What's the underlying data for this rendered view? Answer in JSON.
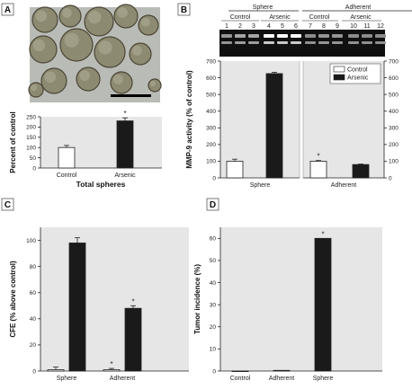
{
  "panels": {
    "A": "A",
    "B": "B",
    "C": "C",
    "D": "D"
  },
  "gel": {
    "group_labels": [
      "Sphere",
      "Adherent"
    ],
    "treatment_labels": [
      "Control",
      "Arsenic",
      "Control",
      "Arsenic"
    ],
    "lanes": [
      "1",
      "2",
      "3",
      "4",
      "5",
      "6",
      "7",
      "8",
      "9",
      "10",
      "11",
      "12"
    ],
    "band_intensity": [
      0.35,
      0.45,
      0.45,
      1.0,
      1.0,
      1.0,
      0.3,
      0.35,
      0.35,
      0.3,
      0.3,
      0.3
    ]
  },
  "colors": {
    "control": "#ffffff",
    "arsenic": "#1a1a1a",
    "plot_bg": "#e6e6e6"
  },
  "chart_data": [
    {
      "id": "A",
      "type": "bar",
      "categories": [
        "Control",
        "Arsenic"
      ],
      "values": [
        100,
        230
      ],
      "errors": [
        10,
        15
      ],
      "significant": [
        false,
        true
      ],
      "ylabel": "Percent of control",
      "xlabel": "Total spheres",
      "ylim": [
        0,
        250
      ],
      "yticks": [
        0,
        50,
        100,
        150,
        200,
        250
      ],
      "grid": false
    },
    {
      "id": "B",
      "type": "bar",
      "groups": [
        "Sphere",
        "Adherent"
      ],
      "series": [
        {
          "name": "Control",
          "values": [
            100,
            100
          ],
          "errors": [
            12,
            4
          ]
        },
        {
          "name": "Arsenic",
          "values": [
            625,
            80
          ],
          "errors": [
            8,
            3
          ]
        }
      ],
      "significant": [
        [
          false,
          true
        ],
        [
          false,
          false
        ]
      ],
      "ylabel": "MMP-9 activity (% of control)",
      "ylim": [
        0,
        700
      ],
      "yticks": [
        0,
        100,
        200,
        300,
        400,
        500,
        600,
        700
      ],
      "legend": "top-right",
      "grid": false
    },
    {
      "id": "C",
      "type": "bar",
      "groups": [
        "Sphere",
        "Adherent"
      ],
      "series": [
        {
          "name": "Control",
          "values": [
            1,
            1
          ],
          "errors": [
            2,
            1
          ]
        },
        {
          "name": "Arsenic",
          "values": [
            98,
            48
          ],
          "errors": [
            4,
            2
          ]
        }
      ],
      "significant": [
        [
          false,
          true
        ],
        [
          false,
          true
        ]
      ],
      "ylabel": "CFE (% above control)",
      "ylim": [
        0,
        110
      ],
      "yticks": [
        0,
        20,
        40,
        60,
        80,
        100
      ],
      "grid": false
    },
    {
      "id": "D",
      "type": "bar",
      "categories": [
        "Control",
        "Adherent",
        "Sphere"
      ],
      "values": [
        0,
        0.3,
        60
      ],
      "fills": [
        "control",
        "arsenic",
        "arsenic"
      ],
      "significant": [
        false,
        false,
        true
      ],
      "ylabel": "Tumor incidence (%)",
      "ylim": [
        0,
        65
      ],
      "yticks": [
        0,
        10,
        20,
        30,
        40,
        50,
        60
      ],
      "grid": false
    }
  ]
}
